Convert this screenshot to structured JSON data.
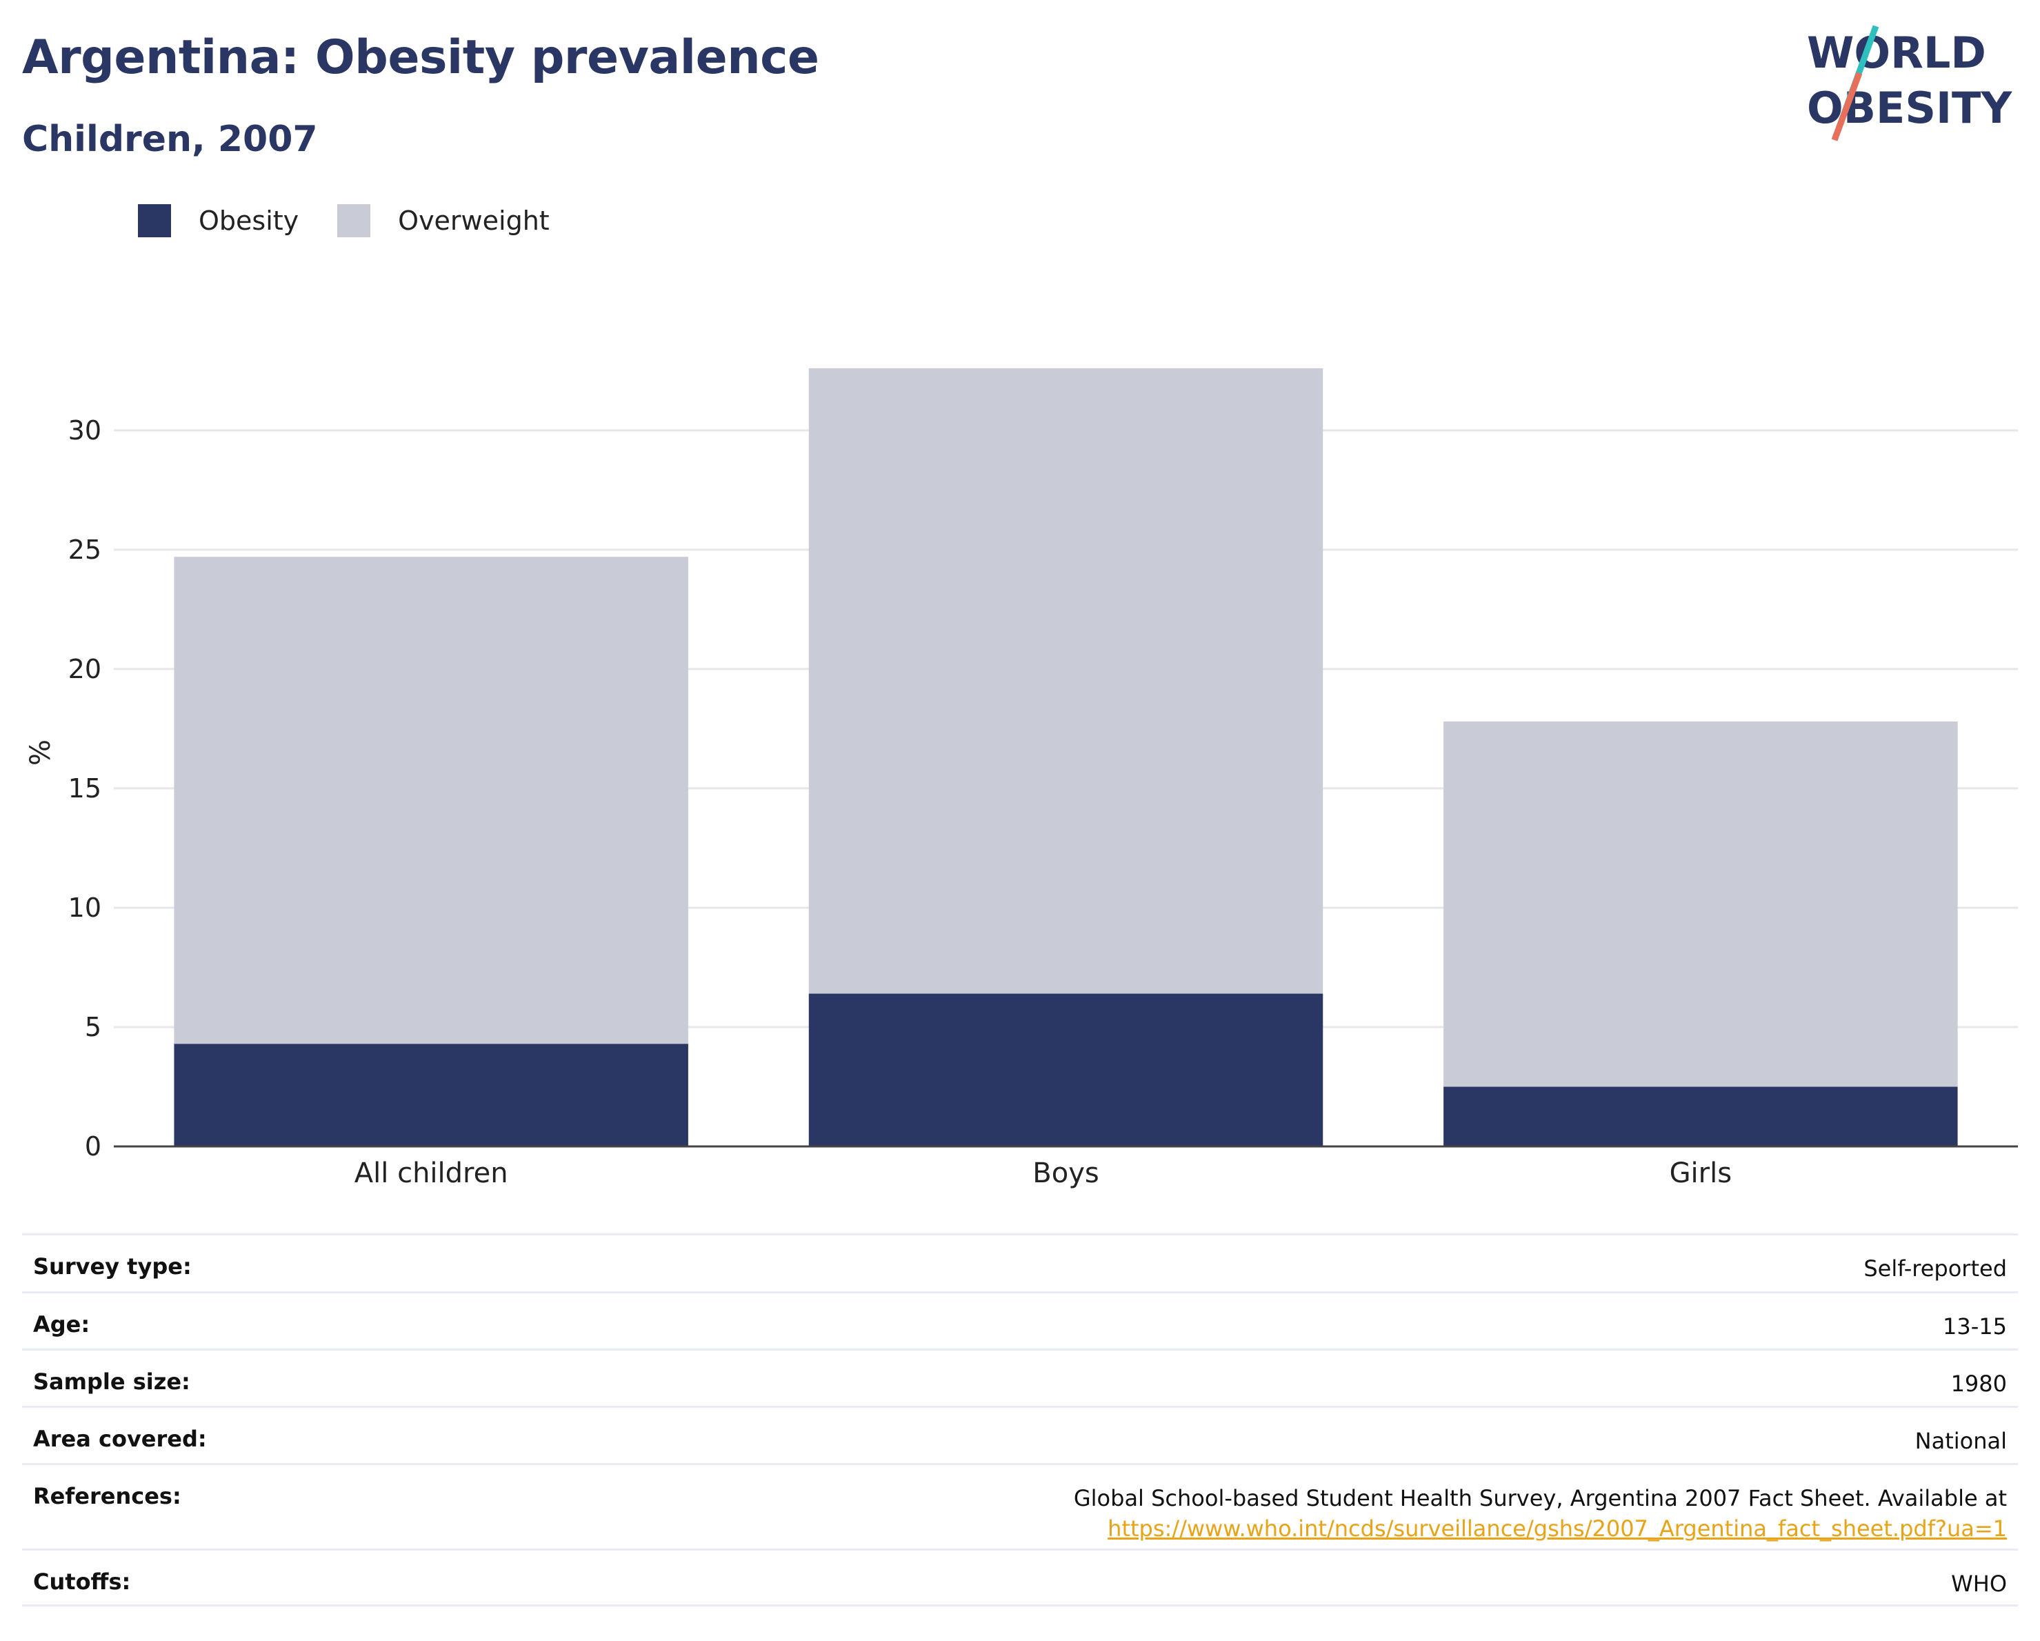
{
  "title": "Argentina: Obesity prevalence",
  "subtitle": "Children, 2007",
  "logo": {
    "line1": "WORLD",
    "line2": "OBESITY"
  },
  "legend": [
    {
      "label": "Obesity",
      "color": "#2a3663"
    },
    {
      "label": "Overweight",
      "color": "#c9cbd6"
    }
  ],
  "chart_data": {
    "type": "bar",
    "stacked": true,
    "categories": [
      "All children",
      "Boys",
      "Girls"
    ],
    "series": [
      {
        "name": "Obesity",
        "values": [
          4.3,
          6.4,
          2.5
        ],
        "color": "#2a3663"
      },
      {
        "name": "Overweight",
        "values": [
          20.4,
          26.2,
          15.3
        ],
        "color": "#c9cbd6"
      }
    ],
    "ylabel": "%",
    "yticks": [
      0,
      5,
      10,
      15,
      20,
      25,
      30
    ],
    "ylim": [
      0,
      33
    ],
    "grid": true,
    "legend_position": "top-left"
  },
  "meta": {
    "survey_type": {
      "label": "Survey type:",
      "value": "Self-reported"
    },
    "age": {
      "label": "Age:",
      "value": "13-15"
    },
    "sample_size": {
      "label": "Sample size:",
      "value": "1980"
    },
    "area_covered": {
      "label": "Area covered:",
      "value": "National"
    },
    "references": {
      "label": "References:",
      "text": "Global School-based Student Health Survey, Argentina 2007 Fact Sheet. Available at",
      "url": "https://www.who.int/ncds/surveillance/gshs/2007_Argentina_fact_sheet.pdf?ua=1"
    },
    "cutoffs": {
      "label": "Cutoffs:",
      "value": "WHO"
    }
  }
}
